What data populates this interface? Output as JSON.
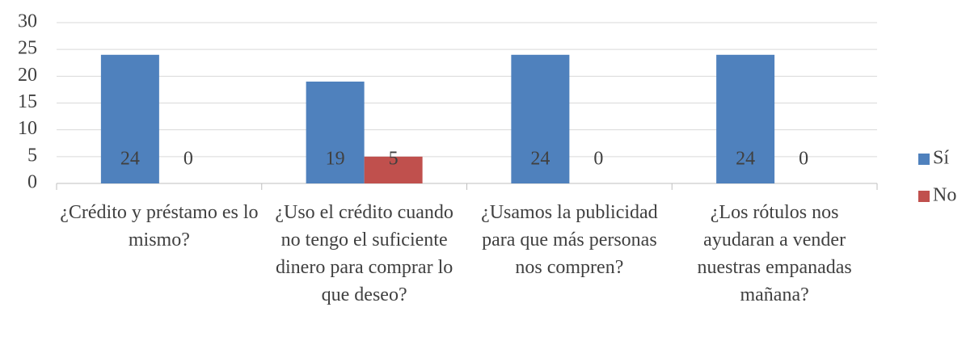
{
  "chart_data": {
    "type": "bar",
    "categories": [
      "¿Crédito y préstamo es lo mismo?",
      "¿Uso el crédito cuando no tengo el suficiente dinero para comprar lo que deseo?",
      "¿Usamos la publicidad para que más personas nos compren?",
      "¿Los rótulos nos ayudaran a vender nuestras empanadas mañana?"
    ],
    "series": [
      {
        "name": "Sí",
        "color": "#4f81bd",
        "values": [
          24,
          19,
          24,
          24
        ]
      },
      {
        "name": "No",
        "color": "#c0504d",
        "values": [
          0,
          5,
          0,
          0
        ]
      }
    ],
    "ylim": [
      0,
      30
    ],
    "yticks": [
      0,
      5,
      10,
      15,
      20,
      25,
      30
    ],
    "grid": true,
    "legend": "right"
  }
}
